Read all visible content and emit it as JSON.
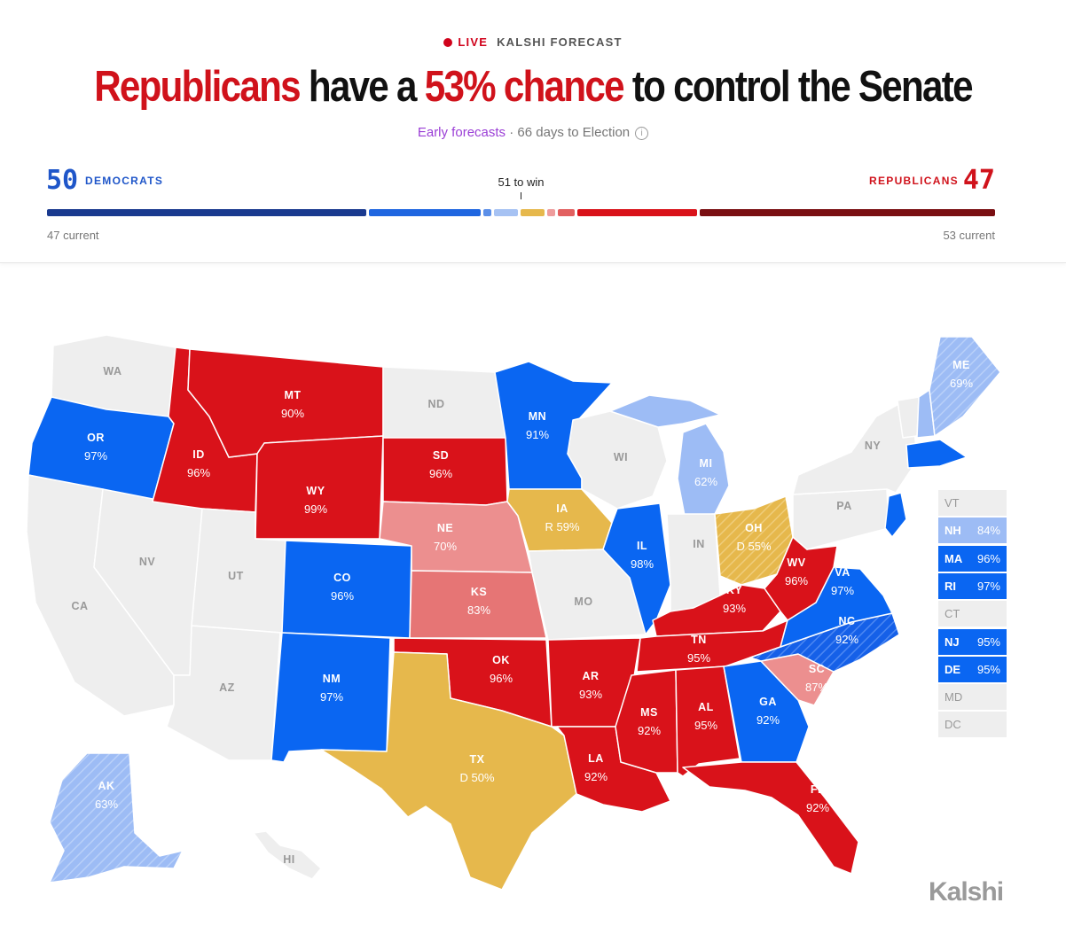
{
  "header": {
    "live_label": "LIVE",
    "source_label": "KALSHI FORECAST",
    "headline_party": "Republicans",
    "headline_mid": "have a",
    "headline_pct": "53% chance",
    "headline_end": "to control the Senate",
    "sub_early": "Early forecasts",
    "sub_rest": "· 66 days to Election",
    "info_icon": "info-icon"
  },
  "summary": {
    "dem_seats": "50",
    "dem_label": "DEMOCRATS",
    "rep_seats": "47",
    "rep_label": "REPUBLICANS",
    "to_win": "51 to win",
    "dem_current": "47 current",
    "rep_current": "53 current"
  },
  "colors": {
    "dem_safe": "#1a3a8f",
    "dem_likely": "#0a66f2",
    "dem_lean": "#9dbcf5",
    "tossup": "#e6b84c",
    "rep_lean": "#ec8f8f",
    "rep_likely": "#d9121a",
    "rep_safe": "#7a0f12",
    "no_race": "#eeeeee"
  },
  "seat_bar": [
    {
      "name": "dem-safe",
      "seats": 20,
      "color": "#1a3a8f"
    },
    {
      "name": "dem-likely",
      "seats": 7,
      "color": "#1f66e0"
    },
    {
      "name": "dem-lean-1",
      "seats": 0.5,
      "color": "#5b8fe8"
    },
    {
      "name": "dem-lean-2",
      "seats": 1.5,
      "color": "#a6c2f3"
    },
    {
      "name": "tossup",
      "seats": 1.5,
      "color": "#e6b84c"
    },
    {
      "name": "rep-lean-1",
      "seats": 0.5,
      "color": "#ee9c9c"
    },
    {
      "name": "rep-lean-2",
      "seats": 1,
      "color": "#e26060"
    },
    {
      "name": "rep-likely",
      "seats": 7.5,
      "color": "#d9121a"
    },
    {
      "name": "rep-safe",
      "seats": 18.5,
      "color": "#7a0f12"
    }
  ],
  "states": [
    {
      "id": "WA",
      "label": "WA",
      "value": ""
    },
    {
      "id": "OR",
      "label": "OR",
      "value": "97%"
    },
    {
      "id": "CA",
      "label": "CA",
      "value": ""
    },
    {
      "id": "NV",
      "label": "NV",
      "value": ""
    },
    {
      "id": "ID",
      "label": "ID",
      "value": "96%"
    },
    {
      "id": "MT",
      "label": "MT",
      "value": "90%"
    },
    {
      "id": "WY",
      "label": "WY",
      "value": "99%"
    },
    {
      "id": "UT",
      "label": "UT",
      "value": ""
    },
    {
      "id": "AZ",
      "label": "AZ",
      "value": ""
    },
    {
      "id": "CO",
      "label": "CO",
      "value": "96%"
    },
    {
      "id": "NM",
      "label": "NM",
      "value": "97%"
    },
    {
      "id": "ND",
      "label": "ND",
      "value": ""
    },
    {
      "id": "SD",
      "label": "SD",
      "value": "96%"
    },
    {
      "id": "NE",
      "label": "NE",
      "value": "70%"
    },
    {
      "id": "KS",
      "label": "KS",
      "value": "83%"
    },
    {
      "id": "OK",
      "label": "OK",
      "value": "96%"
    },
    {
      "id": "TX",
      "label": "TX",
      "value": "D 50%"
    },
    {
      "id": "MN",
      "label": "MN",
      "value": "91%"
    },
    {
      "id": "IA",
      "label": "IA",
      "value": "R 59%"
    },
    {
      "id": "MO",
      "label": "MO",
      "value": ""
    },
    {
      "id": "AR",
      "label": "AR",
      "value": "93%"
    },
    {
      "id": "LA",
      "label": "LA",
      "value": "92%"
    },
    {
      "id": "WI",
      "label": "WI",
      "value": ""
    },
    {
      "id": "IL",
      "label": "IL",
      "value": "98%"
    },
    {
      "id": "MI",
      "label": "MI",
      "value": "62%"
    },
    {
      "id": "IN",
      "label": "IN",
      "value": ""
    },
    {
      "id": "OH",
      "label": "OH",
      "value": "D 55%"
    },
    {
      "id": "KY",
      "label": "KY",
      "value": "93%"
    },
    {
      "id": "TN",
      "label": "TN",
      "value": "95%"
    },
    {
      "id": "MS",
      "label": "MS",
      "value": "92%"
    },
    {
      "id": "AL",
      "label": "AL",
      "value": "95%"
    },
    {
      "id": "GA",
      "label": "GA",
      "value": "92%"
    },
    {
      "id": "FL",
      "label": "FL",
      "value": "92%"
    },
    {
      "id": "SC",
      "label": "SC",
      "value": "87%"
    },
    {
      "id": "NC",
      "label": "NC",
      "value": "92%"
    },
    {
      "id": "VA",
      "label": "VA",
      "value": "97%"
    },
    {
      "id": "WV",
      "label": "WV",
      "value": "96%"
    },
    {
      "id": "PA",
      "label": "PA",
      "value": ""
    },
    {
      "id": "NY",
      "label": "NY",
      "value": ""
    },
    {
      "id": "ME",
      "label": "ME",
      "value": "69%"
    },
    {
      "id": "AK",
      "label": "AK",
      "value": "63%"
    },
    {
      "id": "HI",
      "label": "HI",
      "value": ""
    }
  ],
  "small_states": [
    {
      "label": "VT",
      "value": ""
    },
    {
      "label": "NH",
      "value": "84%"
    },
    {
      "label": "MA",
      "value": "96%"
    },
    {
      "label": "RI",
      "value": "97%"
    },
    {
      "label": "CT",
      "value": ""
    },
    {
      "label": "NJ",
      "value": "95%"
    },
    {
      "label": "DE",
      "value": "95%"
    },
    {
      "label": "MD",
      "value": ""
    },
    {
      "label": "DC",
      "value": ""
    }
  ],
  "logo": "Kalshi"
}
